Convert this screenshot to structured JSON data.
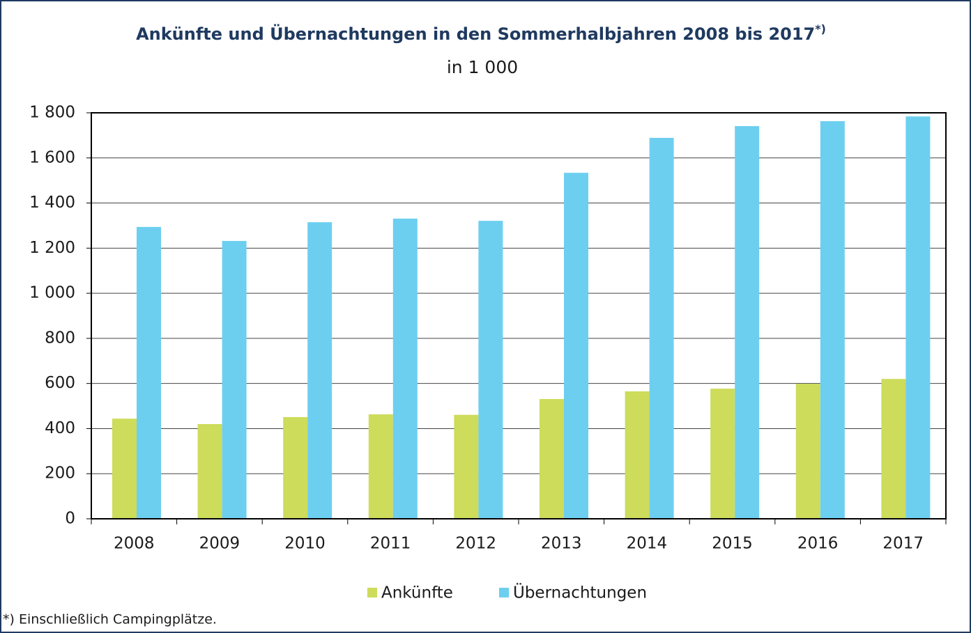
{
  "chart_data": {
    "type": "bar",
    "title": "Ankünfte und Übernachtungen in den Sommerhalbjahren 2008 bis 2017",
    "title_marker": "*)",
    "subtitle": "in 1 000",
    "footnote": "*) Einschließlich Campingplätze.",
    "categories": [
      "2008",
      "2009",
      "2010",
      "2011",
      "2012",
      "2013",
      "2014",
      "2015",
      "2016",
      "2017"
    ],
    "series": [
      {
        "name": "Ankünfte",
        "color": "#cddc5a",
        "values": [
          444,
          420,
          451,
          463,
          461,
          531,
          565,
          577,
          599,
          620
        ]
      },
      {
        "name": "Übernachtungen",
        "color": "#6dcff0",
        "values": [
          1294,
          1232,
          1315,
          1331,
          1321,
          1534,
          1689,
          1741,
          1763,
          1784
        ]
      }
    ],
    "ylim": [
      0,
      1800
    ],
    "yticks": [
      0,
      200,
      400,
      600,
      800,
      {
        "value": 1000,
        "label": "1 000"
      },
      {
        "value": 1200,
        "label": "1 200"
      },
      {
        "value": 1400,
        "label": "1 400"
      },
      {
        "value": 1600,
        "label": "1 600"
      },
      {
        "value": 1800,
        "label": "1 800"
      }
    ],
    "grid": true,
    "legend": "bottom"
  }
}
